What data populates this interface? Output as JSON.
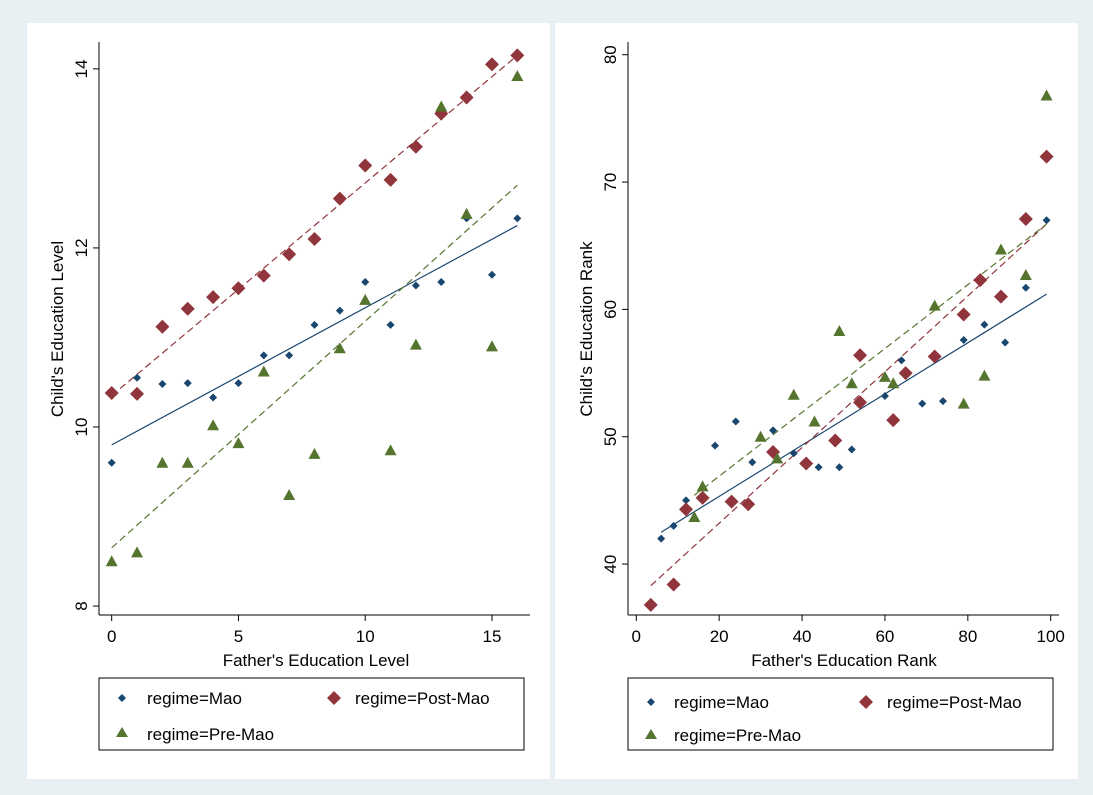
{
  "colors": {
    "Mao": "#1a476f",
    "Post-Mao": "#90353b",
    "Pre-Mao": "#55752f"
  },
  "markers": {
    "Mao": "small-diamond",
    "Post-Mao": "diamond",
    "Pre-Mao": "triangle"
  },
  "chart_data": [
    {
      "type": "scatter",
      "xlabel": "Father's Education Level",
      "ylabel": "Child's Education Level",
      "xlim": [
        -0.5,
        16.5
      ],
      "ylim": [
        7.9,
        14.3
      ],
      "xticks": [
        0,
        5,
        10,
        15
      ],
      "yticks": [
        8,
        10,
        12,
        14
      ],
      "legend_position": "bottom",
      "series": [
        {
          "name": "regime=Mao",
          "key": "Mao",
          "points": [
            [
              0,
              9.6
            ],
            [
              1,
              10.55
            ],
            [
              2,
              10.48
            ],
            [
              3,
              10.49
            ],
            [
              4,
              10.33
            ],
            [
              5,
              10.49
            ],
            [
              6,
              10.8
            ],
            [
              7,
              10.8
            ],
            [
              8,
              11.14
            ],
            [
              9,
              11.3
            ],
            [
              10,
              11.62
            ],
            [
              11,
              11.14
            ],
            [
              12,
              11.58
            ],
            [
              13,
              11.62
            ],
            [
              14,
              12.33
            ],
            [
              15,
              11.7
            ],
            [
              16,
              12.33
            ]
          ],
          "fit": [
            [
              0,
              9.8
            ],
            [
              16,
              12.25
            ]
          ]
        },
        {
          "name": "regime=Post-Mao",
          "key": "Post-Mao",
          "points": [
            [
              0,
              10.38
            ],
            [
              1,
              10.37
            ],
            [
              2,
              11.12
            ],
            [
              3,
              11.32
            ],
            [
              4,
              11.45
            ],
            [
              5,
              11.55
            ],
            [
              6,
              11.69
            ],
            [
              7,
              11.93
            ],
            [
              8,
              12.1
            ],
            [
              9,
              12.55
            ],
            [
              10,
              12.92
            ],
            [
              11,
              12.76
            ],
            [
              12,
              13.13
            ],
            [
              13,
              13.5
            ],
            [
              14,
              13.68
            ],
            [
              15,
              14.05
            ],
            [
              16,
              14.15
            ]
          ],
          "fit": [
            [
              0,
              10.35
            ],
            [
              16,
              14.15
            ]
          ]
        },
        {
          "name": "regime=Pre-Mao",
          "key": "Pre-Mao",
          "points": [
            [
              0,
              8.5
            ],
            [
              1,
              8.6
            ],
            [
              2,
              9.6
            ],
            [
              3,
              9.6
            ],
            [
              4,
              10.02
            ],
            [
              5,
              9.82
            ],
            [
              6,
              10.62
            ],
            [
              7,
              9.24
            ],
            [
              8,
              9.7
            ],
            [
              9,
              10.88
            ],
            [
              10,
              11.42
            ],
            [
              11,
              9.74
            ],
            [
              12,
              10.92
            ],
            [
              13,
              13.58
            ],
            [
              14,
              12.38
            ],
            [
              15,
              10.9
            ],
            [
              16,
              13.92
            ]
          ],
          "fit": [
            [
              0,
              8.65
            ],
            [
              16,
              12.7
            ]
          ]
        }
      ]
    },
    {
      "type": "scatter",
      "xlabel": "Father's Education Rank",
      "ylabel": "Child's Education Rank",
      "xlim": [
        -2,
        102
      ],
      "ylim": [
        36,
        81
      ],
      "xticks": [
        0,
        20,
        40,
        60,
        80,
        100
      ],
      "yticks": [
        40,
        50,
        60,
        70,
        80
      ],
      "legend_position": "bottom",
      "series": [
        {
          "name": "regime=Mao",
          "key": "Mao",
          "points": [
            [
              6,
              42
            ],
            [
              9,
              43
            ],
            [
              12,
              45
            ],
            [
              19,
              49.3
            ],
            [
              24,
              51.2
            ],
            [
              28,
              48
            ],
            [
              33,
              50.5
            ],
            [
              38,
              48.7
            ],
            [
              44,
              47.6
            ],
            [
              49,
              47.6
            ],
            [
              52,
              49
            ],
            [
              60,
              53.2
            ],
            [
              64,
              56
            ],
            [
              69,
              52.6
            ],
            [
              74,
              52.8
            ],
            [
              79,
              57.6
            ],
            [
              84,
              58.8
            ],
            [
              89,
              57.4
            ],
            [
              94,
              61.7
            ],
            [
              99,
              67
            ]
          ],
          "fit": [
            [
              6,
              42.5
            ],
            [
              99,
              61.2
            ]
          ]
        },
        {
          "name": "regime=Post-Mao",
          "key": "Post-Mao",
          "points": [
            [
              3.5,
              36.8
            ],
            [
              9,
              38.4
            ],
            [
              12,
              44.3
            ],
            [
              16,
              45.2
            ],
            [
              23,
              44.9
            ],
            [
              27,
              44.7
            ],
            [
              33,
              48.8
            ],
            [
              41,
              47.9
            ],
            [
              48,
              49.7
            ],
            [
              54,
              52.7
            ],
            [
              54,
              56.4
            ],
            [
              62,
              51.3
            ],
            [
              65,
              55
            ],
            [
              72,
              56.3
            ],
            [
              79,
              59.6
            ],
            [
              83,
              62.3
            ],
            [
              88,
              61
            ],
            [
              94,
              67.1
            ],
            [
              99,
              72
            ]
          ],
          "fit": [
            [
              3.5,
              38.3
            ],
            [
              99,
              66.7
            ]
          ]
        },
        {
          "name": "regime=Pre-Mao",
          "key": "Pre-Mao",
          "points": [
            [
              14,
              43.7
            ],
            [
              16,
              46.1
            ],
            [
              30,
              50
            ],
            [
              34,
              48.3
            ],
            [
              38,
              53.3
            ],
            [
              43,
              51.2
            ],
            [
              49,
              58.3
            ],
            [
              52,
              54.2
            ],
            [
              60,
              54.7
            ],
            [
              62,
              54.2
            ],
            [
              72,
              60.3
            ],
            [
              79,
              52.6
            ],
            [
              84,
              54.8
            ],
            [
              88,
              64.7
            ],
            [
              94,
              62.7
            ],
            [
              99,
              76.8
            ]
          ],
          "fit": [
            [
              14,
              45.4
            ],
            [
              99,
              66.7
            ]
          ]
        }
      ]
    }
  ]
}
